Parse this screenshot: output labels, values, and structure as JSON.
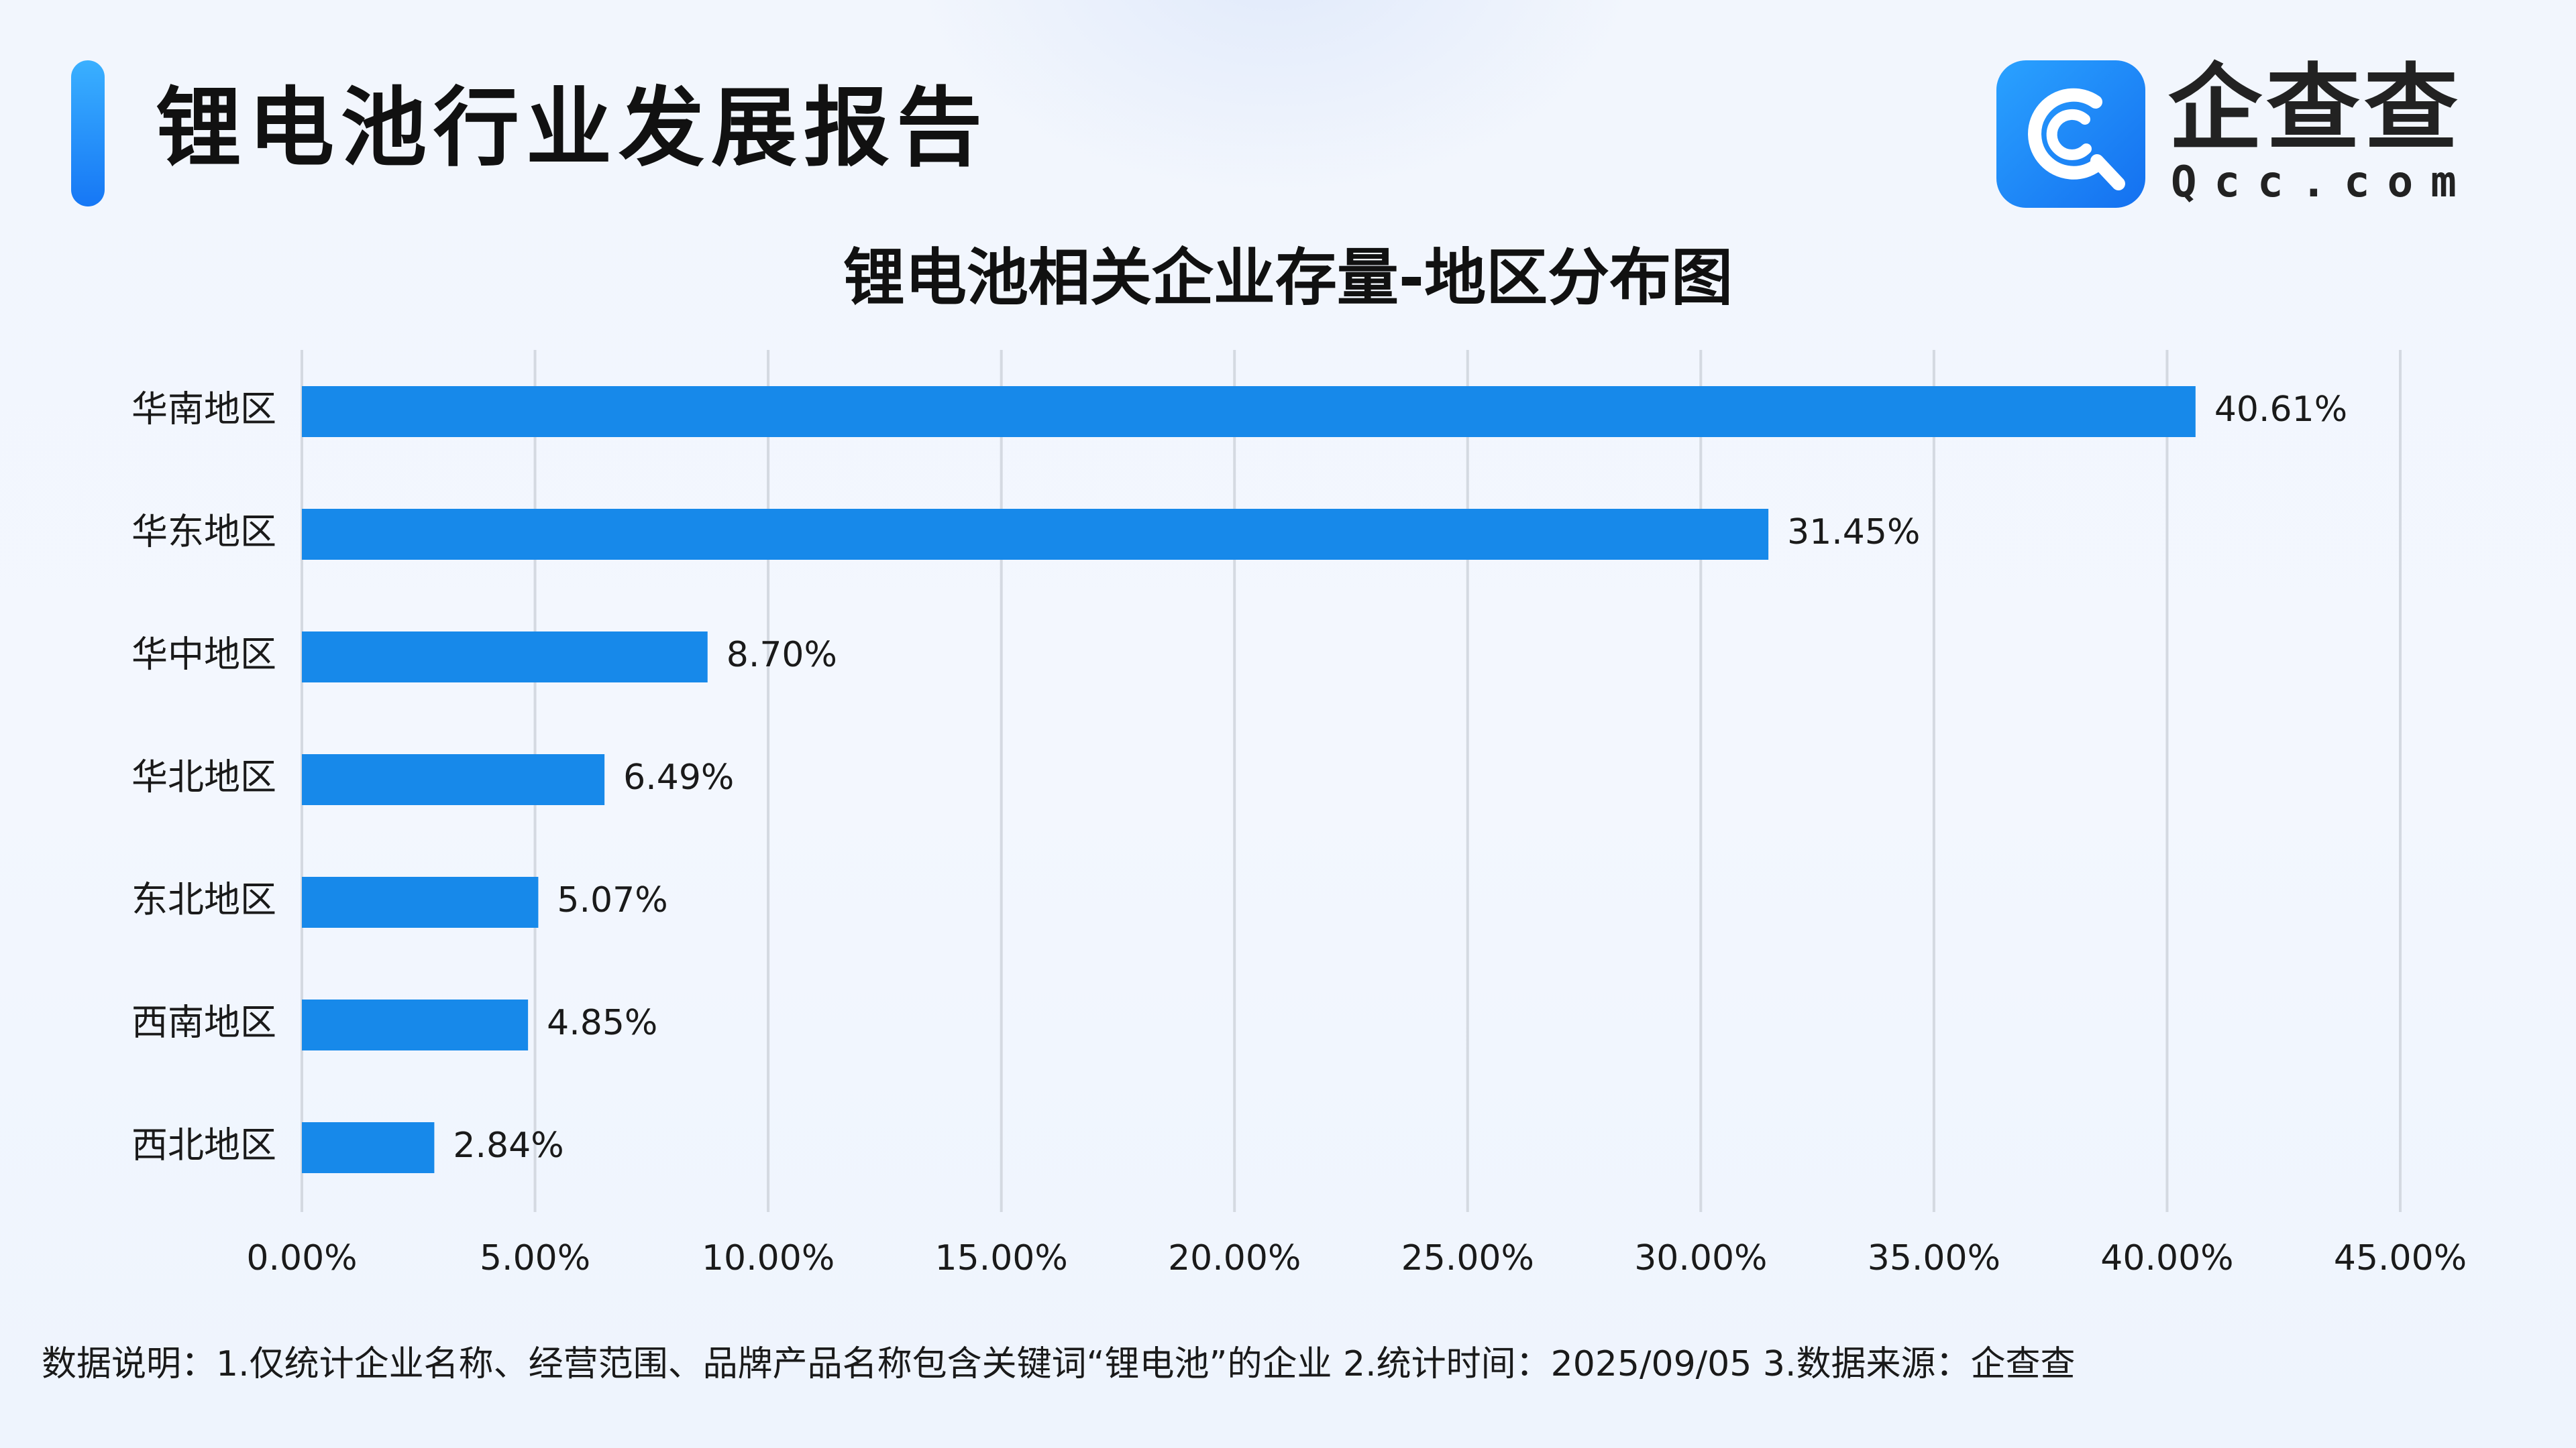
{
  "header": {
    "report_title": "锂电池行业发展报告",
    "brand_name": "企查查",
    "brand_domain": "Qcc.com",
    "logo_icon": "qcc-logo-icon",
    "accent_color": "#1789ea"
  },
  "footnote": "数据说明：1.仅统计企业名称、经营范围、品牌产品名称包含关键词“锂电池”的企业   2.统计时间：2025/09/05   3.数据来源：企查查",
  "chart_data": {
    "type": "bar",
    "orientation": "horizontal",
    "title": "锂电池相关企业存量-地区分布图",
    "xlabel": "",
    "ylabel": "",
    "categories": [
      "华南地区",
      "华东地区",
      "华中地区",
      "华北地区",
      "东北地区",
      "西南地区",
      "西北地区"
    ],
    "values": [
      40.61,
      31.45,
      8.7,
      6.49,
      5.07,
      4.85,
      2.84
    ],
    "value_labels": [
      "40.61%",
      "31.45%",
      "8.70%",
      "6.49%",
      "5.07%",
      "4.85%",
      "2.84%"
    ],
    "xlim": [
      0,
      45
    ],
    "x_ticks": [
      0,
      5,
      10,
      15,
      20,
      25,
      30,
      35,
      40,
      45
    ],
    "x_tick_labels": [
      "0.00%",
      "5.00%",
      "10.00%",
      "15.00%",
      "20.00%",
      "25.00%",
      "30.00%",
      "35.00%",
      "40.00%",
      "45.00%"
    ],
    "grid": true,
    "legend": "none",
    "bar_color": "#1789ea"
  }
}
